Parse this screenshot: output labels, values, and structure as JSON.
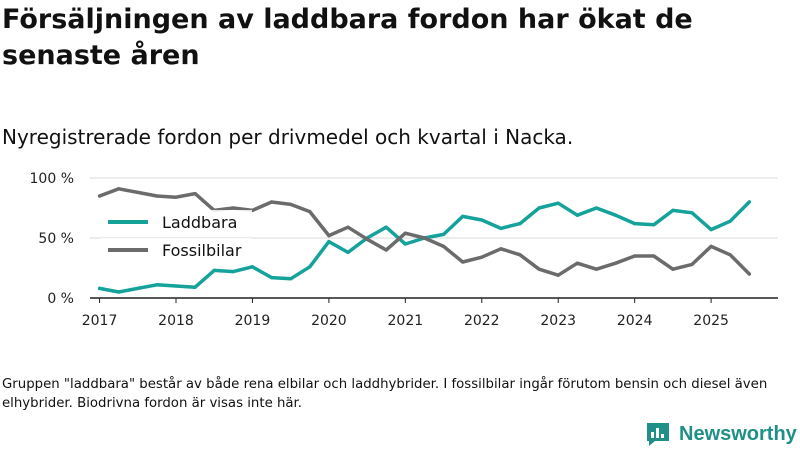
{
  "header": {
    "title": "Försäljningen av laddbara fordon har ökat de senaste åren",
    "subtitle": "Nyregistrerade fordon per drivmedel och kvartal i Nacka."
  },
  "footer": {
    "note": "Gruppen \"laddbara\" består av både rena elbilar och laddhybrider. I fossilbilar ingår förutom bensin och diesel även elhybrider. Biodrivna fordon är visas inte här.",
    "brand": "Newsworthy"
  },
  "colors": {
    "laddbara": "#14a29a",
    "fossil": "#6b6b6b",
    "axis": "#222222",
    "grid": "#d9d9d9",
    "brand": "#1f8f87"
  },
  "chart_data": {
    "type": "line",
    "title": "Nyregistrerade fordon per drivmedel och kvartal i Nacka.",
    "xlabel": "",
    "ylabel": "",
    "ylim": [
      0,
      100
    ],
    "xlim": [
      2016.875,
      2025.875
    ],
    "yticks": [
      0,
      50,
      100
    ],
    "ytick_labels": [
      "0 %",
      "50 %",
      "100 %"
    ],
    "xticks": [
      2017,
      2018,
      2019,
      2020,
      2021,
      2022,
      2023,
      2024,
      2025
    ],
    "xtick_labels": [
      "2017",
      "2018",
      "2019",
      "2020",
      "2021",
      "2022",
      "2023",
      "2024",
      "2025"
    ],
    "legend_position": "middle-left",
    "x": [
      2017,
      2017.25,
      2017.5,
      2017.75,
      2018,
      2018.25,
      2018.5,
      2018.75,
      2019,
      2019.25,
      2019.5,
      2019.75,
      2020,
      2020.25,
      2020.5,
      2020.75,
      2021,
      2021.25,
      2021.5,
      2021.75,
      2022,
      2022.25,
      2022.5,
      2022.75,
      2023,
      2023.25,
      2023.5,
      2023.75,
      2024,
      2024.25,
      2024.5,
      2024.75,
      2025,
      2025.25,
      2025.5
    ],
    "series": [
      {
        "name": "Laddbara",
        "color": "#14a29a",
        "values": [
          8,
          5,
          8,
          11,
          10,
          9,
          23,
          22,
          26,
          17,
          16,
          26,
          47,
          38,
          50,
          59,
          45,
          50,
          53,
          68,
          65,
          58,
          62,
          75,
          79,
          69,
          75,
          69,
          62,
          61,
          73,
          71,
          57,
          64,
          80
        ]
      },
      {
        "name": "Fossilbilar",
        "color": "#6b6b6b",
        "values": [
          85,
          91,
          88,
          85,
          84,
          87,
          73,
          75,
          73,
          80,
          78,
          72,
          52,
          59,
          49,
          40,
          54,
          50,
          43,
          30,
          34,
          41,
          36,
          24,
          19,
          29,
          24,
          29,
          35,
          35,
          24,
          28,
          43,
          36,
          20
        ]
      }
    ]
  }
}
